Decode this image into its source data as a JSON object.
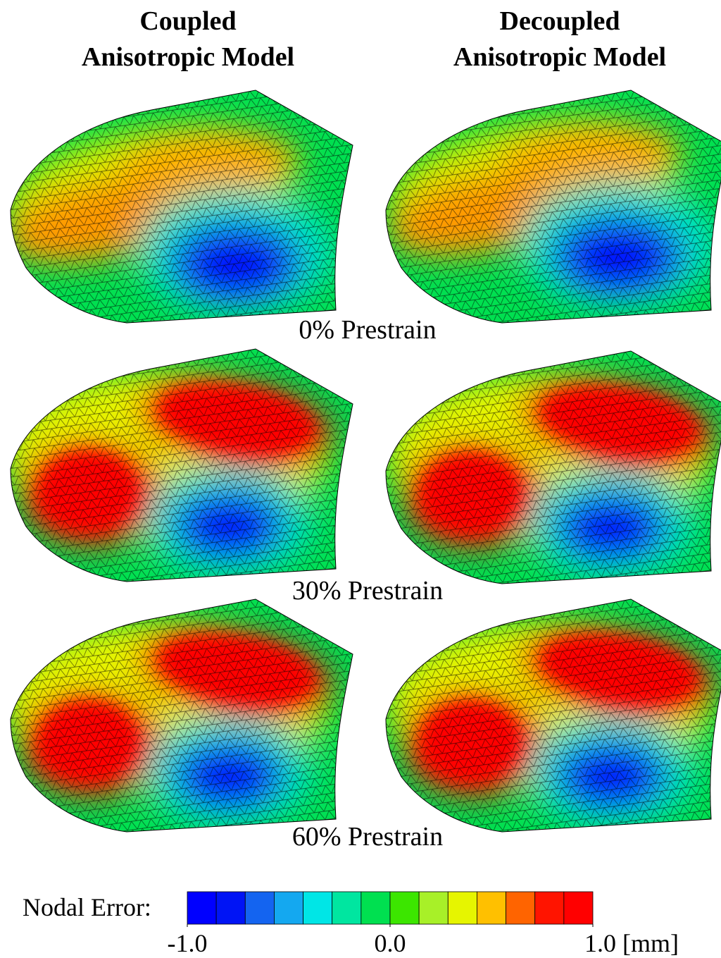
{
  "columns": [
    {
      "title_line1": "Coupled",
      "title_line2": "Anisotropic Model"
    },
    {
      "title_line1": "Decoupled",
      "title_line2": "Anisotropic Model"
    }
  ],
  "rows": [
    {
      "label": "0% Prestrain"
    },
    {
      "label": "30% Prestrain"
    },
    {
      "label": "60% Prestrain"
    }
  ],
  "colorbar": {
    "label": "Nodal Error:",
    "range": [
      -1,
      1
    ],
    "ticks": [
      {
        "value": -1,
        "label": "-1.0"
      },
      {
        "value": 0,
        "label": "0.0"
      },
      {
        "value": 1,
        "label": "1.0 [mm]"
      }
    ],
    "colors": [
      "#0000ff",
      "#0014f5",
      "#1464f0",
      "#14a8f0",
      "#00e6e6",
      "#00e6a0",
      "#00e050",
      "#3ce600",
      "#a8f028",
      "#e6f500",
      "#ffc000",
      "#ff6400",
      "#ff1400",
      "#ff0000"
    ]
  }
}
